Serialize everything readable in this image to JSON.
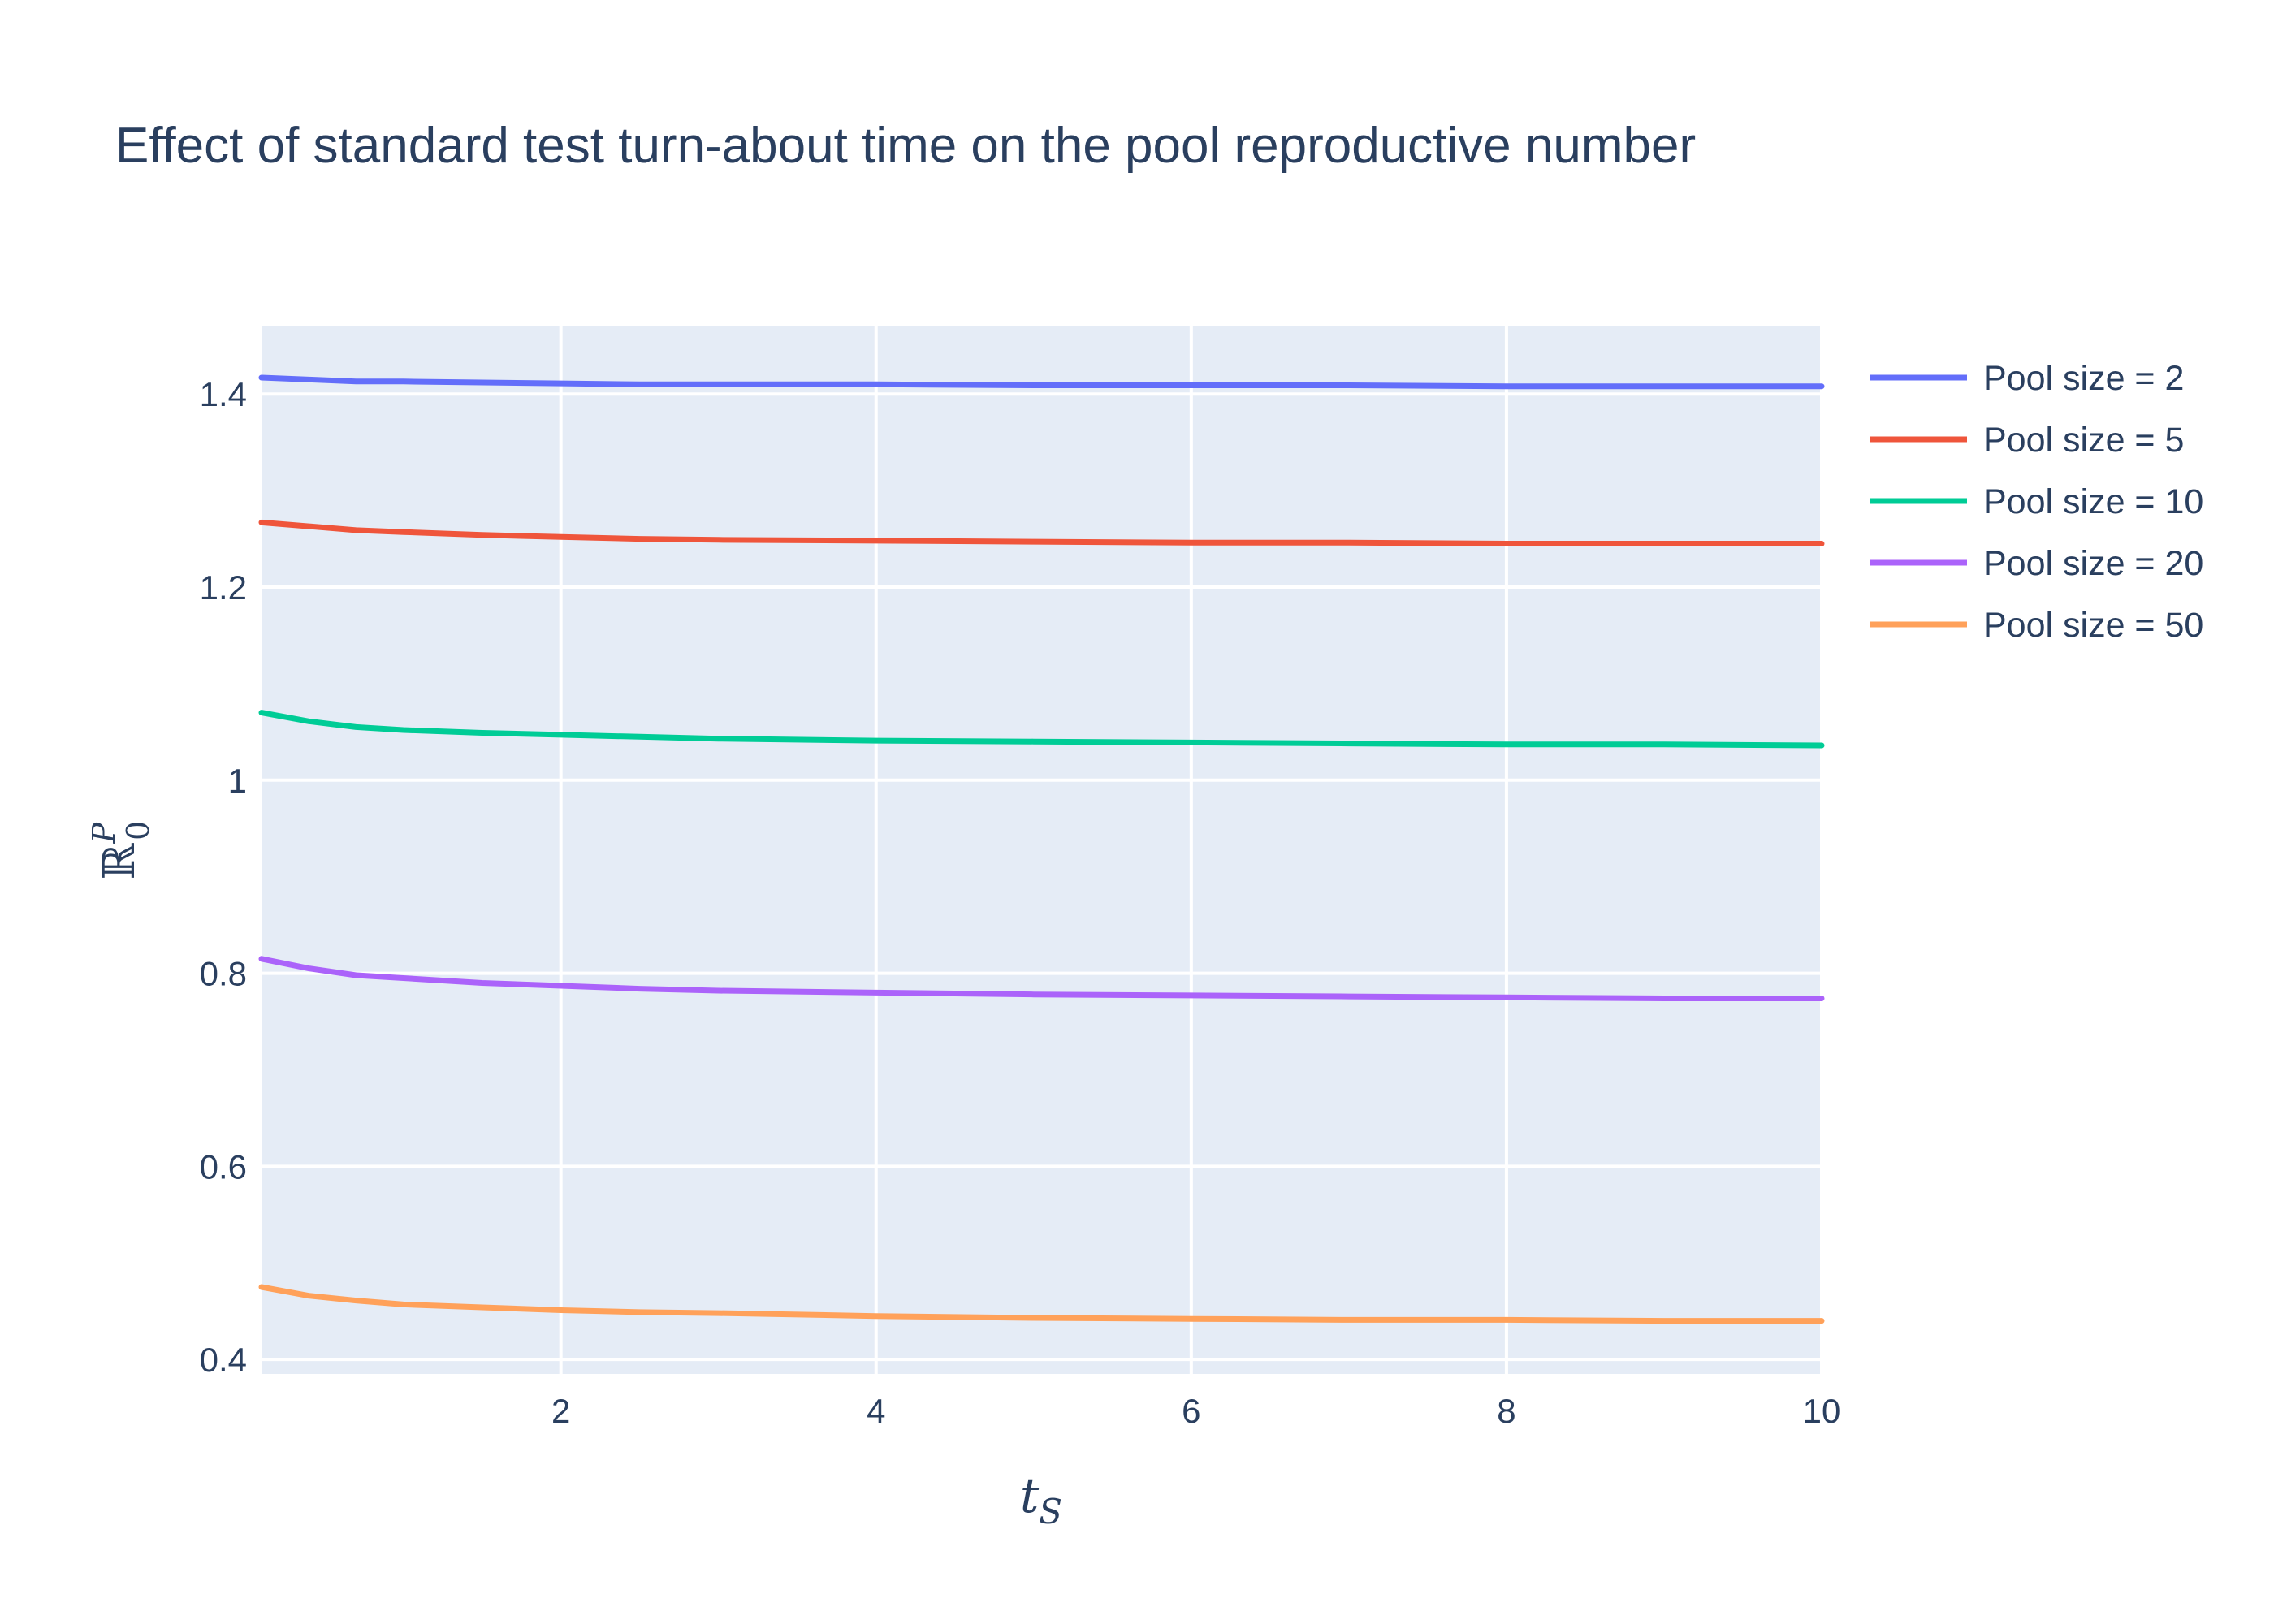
{
  "chart_data": {
    "type": "line",
    "title": "Effect of standard test turn-about time on the pool reproductive number",
    "xlabel": {
      "base": "t",
      "sub": "S"
    },
    "ylabel": {
      "base": "ℝ",
      "sup": "P",
      "sub": "0"
    },
    "xlim": [
      0.1,
      10
    ],
    "ylim": [
      0.385,
      1.47
    ],
    "xticks": [
      2,
      4,
      6,
      8,
      10
    ],
    "yticks": [
      0.4,
      0.6,
      0.8,
      1,
      1.2,
      1.4
    ],
    "ytick_labels": [
      "0.4",
      "0.6",
      "0.8",
      "1",
      "1.2",
      "1.4"
    ],
    "xtick_labels": [
      "2",
      "4",
      "6",
      "8",
      "10"
    ],
    "grid": true,
    "legend_position": "top-right",
    "x": [
      0.1,
      0.4,
      0.7,
      1.0,
      1.5,
      2.0,
      2.5,
      3.0,
      4.0,
      5.0,
      6.0,
      7.0,
      8.0,
      9.0,
      10.0
    ],
    "series": [
      {
        "name": "Pool size = 2",
        "color": "#636efa",
        "values": [
          1.417,
          1.415,
          1.413,
          1.413,
          1.412,
          1.411,
          1.41,
          1.41,
          1.41,
          1.409,
          1.409,
          1.409,
          1.408,
          1.408,
          1.408
        ]
      },
      {
        "name": "Pool size = 5",
        "color": "#ef553b",
        "values": [
          1.267,
          1.263,
          1.259,
          1.257,
          1.254,
          1.252,
          1.25,
          1.249,
          1.248,
          1.247,
          1.246,
          1.246,
          1.245,
          1.245,
          1.245
        ]
      },
      {
        "name": "Pool size = 10",
        "color": "#00cc96",
        "values": [
          1.07,
          1.061,
          1.055,
          1.052,
          1.049,
          1.047,
          1.045,
          1.043,
          1.041,
          1.04,
          1.039,
          1.038,
          1.037,
          1.037,
          1.036
        ]
      },
      {
        "name": "Pool size = 20",
        "color": "#ab63fa",
        "values": [
          0.815,
          0.805,
          0.798,
          0.795,
          0.79,
          0.787,
          0.784,
          0.782,
          0.78,
          0.778,
          0.777,
          0.776,
          0.775,
          0.774,
          0.774
        ]
      },
      {
        "name": "Pool size = 50",
        "color": "#ffa15a",
        "values": [
          0.475,
          0.466,
          0.461,
          0.457,
          0.454,
          0.451,
          0.449,
          0.448,
          0.445,
          0.443,
          0.442,
          0.441,
          0.441,
          0.44,
          0.44
        ]
      }
    ]
  }
}
